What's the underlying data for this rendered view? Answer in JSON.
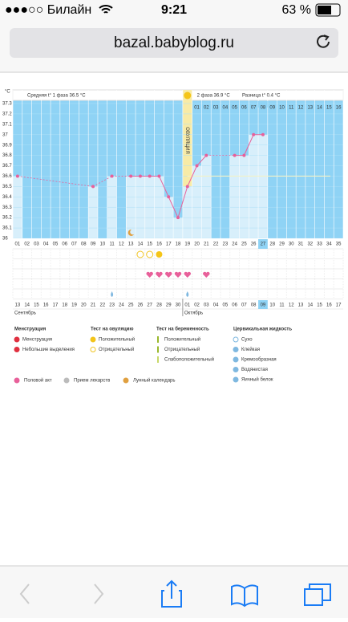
{
  "status_bar": {
    "carrier": "●●●○○ Билайн",
    "time": "9:21",
    "battery": "63 %"
  },
  "url": "bazal.babyblog.ru",
  "chart_data": {
    "type": "line",
    "y_unit": "°C",
    "ylim": [
      36,
      37.3
    ],
    "yticks": [
      37.3,
      37.2,
      37.1,
      37,
      36.9,
      36.8,
      36.7,
      36.6,
      36.5,
      36.4,
      36.3,
      36.2,
      36.1,
      36
    ],
    "categories": [
      "01",
      "02",
      "03",
      "04",
      "05",
      "06",
      "07",
      "08",
      "09",
      "10",
      "11",
      "12",
      "13",
      "14",
      "15",
      "16",
      "17",
      "18",
      "19",
      "20",
      "21",
      "22",
      "23",
      "24",
      "25",
      "26",
      "27",
      "28",
      "29",
      "30",
      "31",
      "32",
      "33",
      "34",
      "35"
    ],
    "values": [
      36.6,
      null,
      null,
      null,
      null,
      null,
      null,
      null,
      36.5,
      null,
      36.6,
      null,
      36.6,
      36.6,
      36.6,
      36.6,
      36.4,
      36.2,
      36.5,
      36.7,
      36.8,
      null,
      null,
      36.8,
      36.8,
      37.0,
      37.0,
      null,
      null,
      null,
      null,
      null,
      null,
      null,
      null
    ],
    "color": "#e8609a",
    "cover_line": 36.6,
    "phase1": "Средняя t° 1 фаза 36.5 °C",
    "ovulation": "ОВУЛЯЦИЯ",
    "phase2": "2 фаза 36.9 °C",
    "difference": "Разница t° 0.4 °C",
    "phase2_days": [
      "01",
      "02",
      "03",
      "04",
      "05",
      "06",
      "07",
      "08",
      "09",
      "10",
      "11",
      "12",
      "13",
      "14",
      "15",
      "16"
    ],
    "dates": [
      "13",
      "14",
      "15",
      "16",
      "17",
      "18",
      "19",
      "20",
      "21",
      "22",
      "23",
      "24",
      "25",
      "26",
      "27",
      "28",
      "29",
      "30",
      "01",
      "02",
      "03",
      "04",
      "05",
      "06",
      "07",
      "08",
      "09",
      "10",
      "11",
      "12",
      "13",
      "14",
      "15",
      "16",
      "17"
    ],
    "weekends": [
      0,
      1,
      7,
      8,
      14,
      15,
      21,
      22,
      28,
      29
    ],
    "today": 26,
    "months": [
      "Сентябрь",
      "Октябрь"
    ],
    "moon_days": [
      13
    ],
    "ovulation_test_negative": [
      14,
      15
    ],
    "ovulation_test_positive": [
      16
    ],
    "intercourse_days": [
      15,
      16,
      17,
      18,
      19,
      21
    ],
    "fluid_days": [
      11,
      19
    ]
  },
  "legend": {
    "groups": [
      {
        "title": "Менструация",
        "items": [
          "Менструация",
          "Небольшие выделения"
        ]
      },
      {
        "title": "Тест на овуляцию",
        "items": [
          "Положительный",
          "Отрицательный"
        ]
      },
      {
        "title": "Тест на беременность",
        "items": [
          "Положительный",
          "Отрицательный",
          "Слабоположительный"
        ]
      },
      {
        "title": "Цервикальная жидкость",
        "items": [
          "Сухо",
          "Клейкая",
          "Кремообразная",
          "Водянистая",
          "Яичный белок"
        ]
      }
    ],
    "extra": [
      "Половой акт",
      "Прием лекарств",
      "Лунный календарь"
    ]
  }
}
